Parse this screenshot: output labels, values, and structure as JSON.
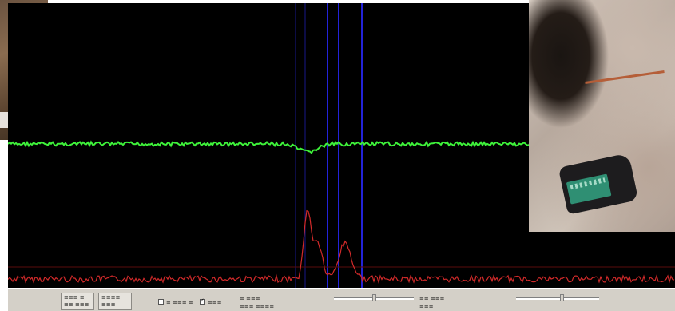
{
  "colors": {
    "background": "#000000",
    "upper_trace": "#3ef23a",
    "lower_trace": "#d22a2a",
    "baseline": "#5a0b0b",
    "marker": "#2323d8",
    "marker_dim": "#17178a",
    "toolbar": "#d4d0c8"
  },
  "markers": {
    "count": 5,
    "style": "vertical blue cursor lines around the absorption dip"
  },
  "controls": {
    "button_1": {
      "line_1": "≡≡≡ ≡",
      "line_2": "≡≡ ≡≡≡"
    },
    "button_2": {
      "line_1": "≡≡≡≡",
      "line_2": "≡≡≡"
    },
    "check_1_label": "≡ ≡≡≡ ≡",
    "check_1_on": false,
    "check_2_label": "≡≡≡",
    "check_2_on": true,
    "readout_1": "≡ ≡≡≡",
    "readout_2": "≡≡≡ ≡≡≡≡",
    "slider_1_value": 0.5,
    "readout_3": "≡≡ ≡≡≡",
    "readout_4": "≡≡≡",
    "slider_2_value": 0.55
  },
  "icons": {
    "slider_thumb": "slider-thumb-icon",
    "checkbox": "checkbox-icon"
  }
}
